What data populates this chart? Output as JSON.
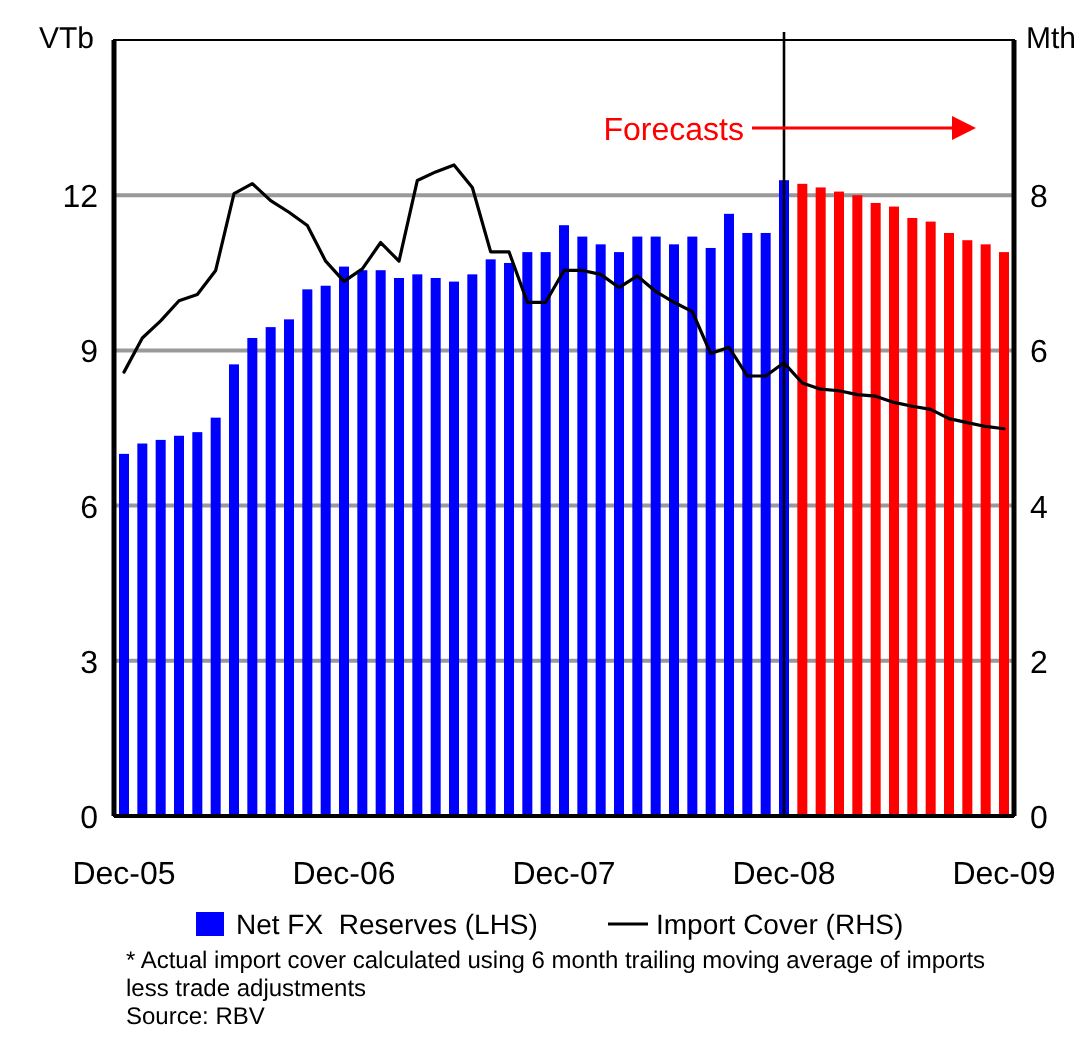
{
  "chart_data": {
    "type": "bar",
    "ylabel": "VTb",
    "y2label": "Mth",
    "categories": [
      "Dec-05",
      null,
      null,
      null,
      null,
      null,
      null,
      null,
      null,
      null,
      null,
      null,
      "Dec-06",
      null,
      null,
      null,
      null,
      null,
      null,
      null,
      null,
      null,
      null,
      null,
      "Dec-07",
      null,
      null,
      null,
      null,
      null,
      null,
      null,
      null,
      null,
      null,
      null,
      "Dec-08",
      null,
      null,
      null,
      null,
      null,
      null,
      null,
      null,
      null,
      null,
      null,
      "Dec-09"
    ],
    "series": [
      {
        "name": "Net FX  Reserves (LHS)",
        "color": "#0000ff",
        "colors": [
          "#0000ff",
          "#0000ff",
          "#0000ff",
          "#0000ff",
          "#0000ff",
          "#0000ff",
          "#0000ff",
          "#0000ff",
          "#0000ff",
          "#0000ff",
          "#0000ff",
          "#0000ff",
          "#0000ff",
          "#0000ff",
          "#0000ff",
          "#0000ff",
          "#0000ff",
          "#0000ff",
          "#0000ff",
          "#0000ff",
          "#0000ff",
          "#0000ff",
          "#0000ff",
          "#0000ff",
          "#0000ff",
          "#0000ff",
          "#0000ff",
          "#0000ff",
          "#0000ff",
          "#0000ff",
          "#0000ff",
          "#0000ff",
          "#0000ff",
          "#0000ff",
          "#0000ff",
          "#0000ff",
          "#0000ff",
          "#ff0000",
          "#ff0000",
          "#ff0000",
          "#ff0000",
          "#ff0000",
          "#ff0000",
          "#ff0000",
          "#ff0000",
          "#ff0000",
          "#ff0000",
          "#ff0000",
          "#ff0000"
        ],
        "values": [
          7.0,
          7.2,
          7.27,
          7.35,
          7.42,
          7.7,
          8.73,
          9.24,
          9.45,
          9.6,
          10.18,
          10.25,
          10.62,
          10.55,
          10.55,
          10.4,
          10.47,
          10.4,
          10.33,
          10.47,
          10.76,
          10.69,
          10.9,
          10.9,
          11.42,
          11.2,
          11.05,
          10.9,
          11.2,
          11.2,
          11.05,
          11.2,
          10.98,
          11.64,
          11.27,
          11.27,
          12.29,
          12.22,
          12.15,
          12.07,
          12.0,
          11.85,
          11.78,
          11.56,
          11.49,
          11.27,
          11.13,
          11.05,
          10.9
        ]
      },
      {
        "name": "Import Cover (RHS)",
        "type": "line",
        "axis": "y2",
        "color": "#000000",
        "values": [
          5.72,
          6.16,
          6.38,
          6.64,
          6.72,
          7.03,
          8.02,
          8.15,
          7.93,
          7.78,
          7.61,
          7.15,
          6.89,
          7.05,
          7.39,
          7.15,
          8.19,
          8.3,
          8.39,
          8.1,
          7.27,
          7.27,
          6.62,
          6.62,
          7.03,
          7.03,
          6.98,
          6.81,
          6.96,
          6.76,
          6.62,
          6.5,
          5.96,
          6.04,
          5.67,
          5.67,
          5.84,
          5.58,
          5.5,
          5.48,
          5.43,
          5.41,
          5.33,
          5.28,
          5.24,
          5.12,
          5.07,
          5.02,
          4.99
        ]
      }
    ],
    "ylim": [
      0,
      15
    ],
    "yticks": [
      0,
      3,
      6,
      9,
      12
    ],
    "y2lim": [
      0,
      10
    ],
    "y2ticks": [
      0,
      2,
      4,
      6,
      8
    ],
    "grid": "y",
    "legend": "bottom",
    "line_style": "solid",
    "ref_lines": [
      {
        "axis": "x",
        "value": "Dec-08",
        "color": "#000000"
      }
    ],
    "annotations": [
      {
        "text": "Forecasts",
        "x": "Dec-08",
        "y": 13.3
      },
      "* Actual import cover calculated using 6 month trailing moving average of imports",
      "less trade adjustments",
      "Source: RBV"
    ]
  }
}
